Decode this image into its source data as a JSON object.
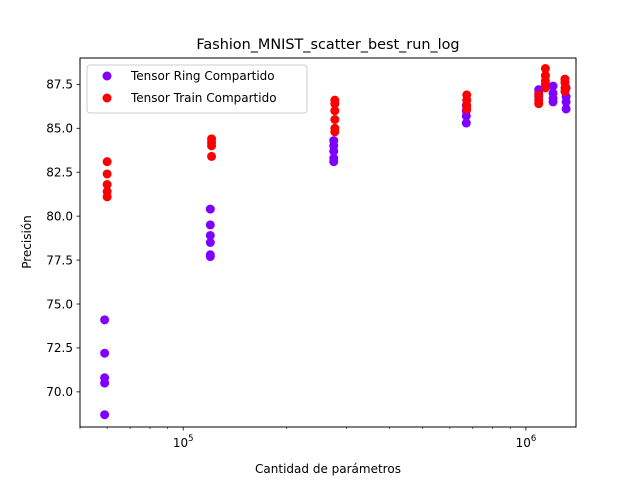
{
  "chart_data": {
    "type": "scatter",
    "title": "Fashion_MNIST_scatter_best_run_log",
    "xlabel": "Cantidad de parámetros",
    "ylabel": "Precisión",
    "xscale": "log",
    "xlim": [
      50000,
      1400000
    ],
    "ylim": [
      68.0,
      89.0
    ],
    "grid": false,
    "legend_position": "upper-left",
    "x_ticks": [
      {
        "value": 100000,
        "base": "10",
        "exp": "5"
      },
      {
        "value": 1000000,
        "base": "10",
        "exp": "6"
      }
    ],
    "y_ticks": [
      70.0,
      72.5,
      75.0,
      77.5,
      80.0,
      82.5,
      85.0,
      87.5
    ],
    "y_tick_labels": [
      "70.0",
      "72.5",
      "75.0",
      "77.5",
      "80.0",
      "82.5",
      "85.0",
      "87.5"
    ],
    "series": [
      {
        "name": "Tensor Ring Compartido",
        "color": "#8000ff",
        "points": [
          [
            59000,
            74.1
          ],
          [
            59000,
            72.2
          ],
          [
            59000,
            70.8
          ],
          [
            59000,
            70.5
          ],
          [
            59000,
            68.7
          ],
          [
            120000,
            80.4
          ],
          [
            120000,
            79.5
          ],
          [
            120000,
            78.9
          ],
          [
            120000,
            78.5
          ],
          [
            120000,
            77.8
          ],
          [
            120000,
            77.7
          ],
          [
            275000,
            84.3
          ],
          [
            275000,
            84.0
          ],
          [
            275000,
            83.7
          ],
          [
            275000,
            83.3
          ],
          [
            275000,
            83.1
          ],
          [
            670000,
            86.3
          ],
          [
            670000,
            86.0
          ],
          [
            670000,
            85.7
          ],
          [
            670000,
            85.3
          ],
          [
            1090000,
            87.2
          ],
          [
            1090000,
            87.0
          ],
          [
            1090000,
            86.8
          ],
          [
            1200000,
            87.4
          ],
          [
            1200000,
            87.0
          ],
          [
            1200000,
            86.7
          ],
          [
            1200000,
            86.5
          ],
          [
            1310000,
            87.3
          ],
          [
            1310000,
            86.8
          ],
          [
            1310000,
            86.5
          ],
          [
            1310000,
            86.1
          ]
        ]
      },
      {
        "name": "Tensor Train Compartido",
        "color": "#ff0000",
        "points": [
          [
            60000,
            83.1
          ],
          [
            60000,
            82.4
          ],
          [
            60000,
            81.8
          ],
          [
            60000,
            81.4
          ],
          [
            60000,
            81.1
          ],
          [
            121000,
            84.4
          ],
          [
            121000,
            84.2
          ],
          [
            121000,
            84.0
          ],
          [
            121000,
            83.4
          ],
          [
            277000,
            86.6
          ],
          [
            277000,
            86.4
          ],
          [
            277000,
            86.0
          ],
          [
            277000,
            85.5
          ],
          [
            277000,
            85.0
          ],
          [
            277000,
            84.8
          ],
          [
            672000,
            86.9
          ],
          [
            672000,
            86.6
          ],
          [
            672000,
            86.3
          ],
          [
            672000,
            86.1
          ],
          [
            1090000,
            86.9
          ],
          [
            1090000,
            86.6
          ],
          [
            1090000,
            86.4
          ],
          [
            1140000,
            88.4
          ],
          [
            1140000,
            88.0
          ],
          [
            1140000,
            87.7
          ],
          [
            1140000,
            87.5
          ],
          [
            1140000,
            87.3
          ],
          [
            1300000,
            87.8
          ],
          [
            1300000,
            87.6
          ],
          [
            1300000,
            87.3
          ],
          [
            1300000,
            87.1
          ]
        ]
      }
    ]
  }
}
